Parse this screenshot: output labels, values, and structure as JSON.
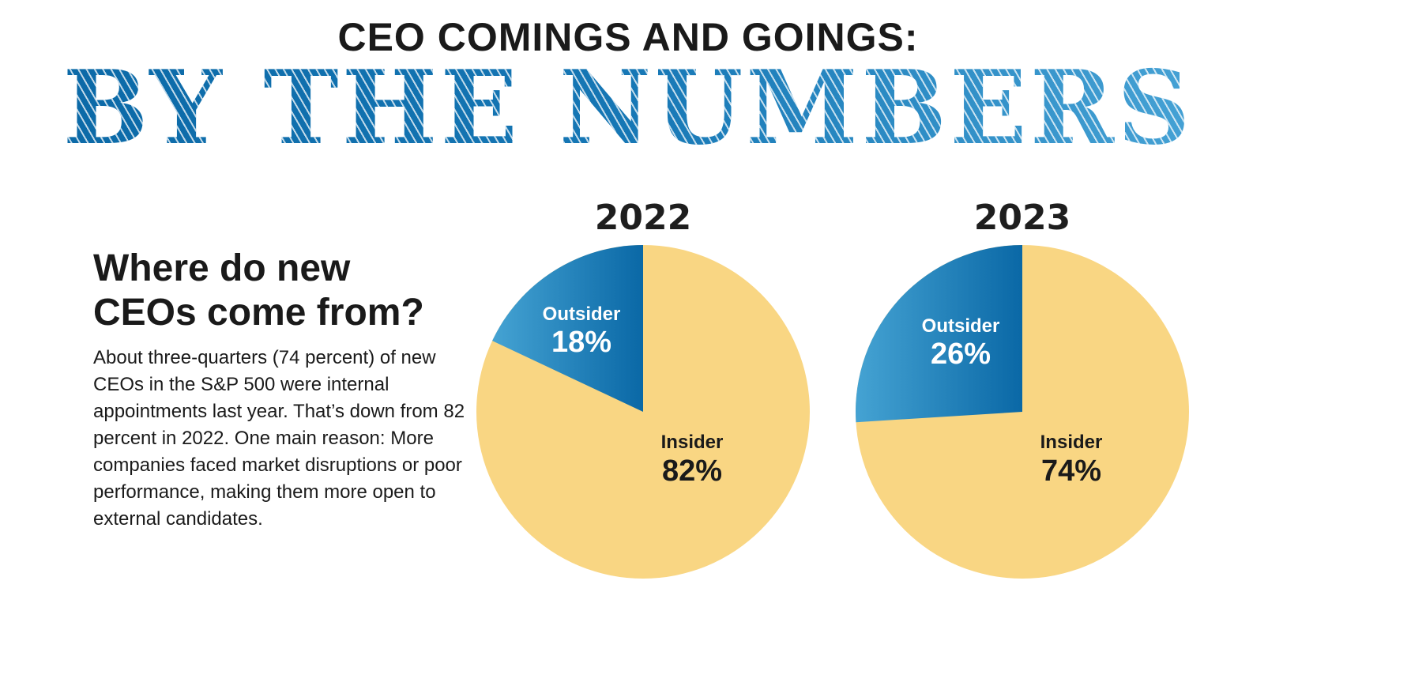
{
  "header": {
    "kicker": "CEO COMINGS AND GOINGS:",
    "title": "BY THE NUMBERS"
  },
  "section": {
    "heading_line1": "Where do new",
    "heading_line2": "CEOs come from?",
    "body": "About three-quarters (74 percent) of new CEOs in the S&P 500 were internal appointments last year. That’s down from 82 percent in 2022. One main reason: More companies faced market disruptions or poor performance, making them more open to external candidates."
  },
  "colors": {
    "insider": "#f9d683",
    "outsider_dark": "#0a68a6",
    "outsider_light": "#45a3d3",
    "title_blue": "#0a68a6"
  },
  "chart_data": [
    {
      "type": "pie",
      "title": "2022",
      "slices": [
        {
          "label": "Outsider",
          "value": 18,
          "display": "18%"
        },
        {
          "label": "Insider",
          "value": 82,
          "display": "82%"
        }
      ]
    },
    {
      "type": "pie",
      "title": "2023",
      "slices": [
        {
          "label": "Outsider",
          "value": 26,
          "display": "26%"
        },
        {
          "label": "Insider",
          "value": 74,
          "display": "74%"
        }
      ]
    }
  ]
}
